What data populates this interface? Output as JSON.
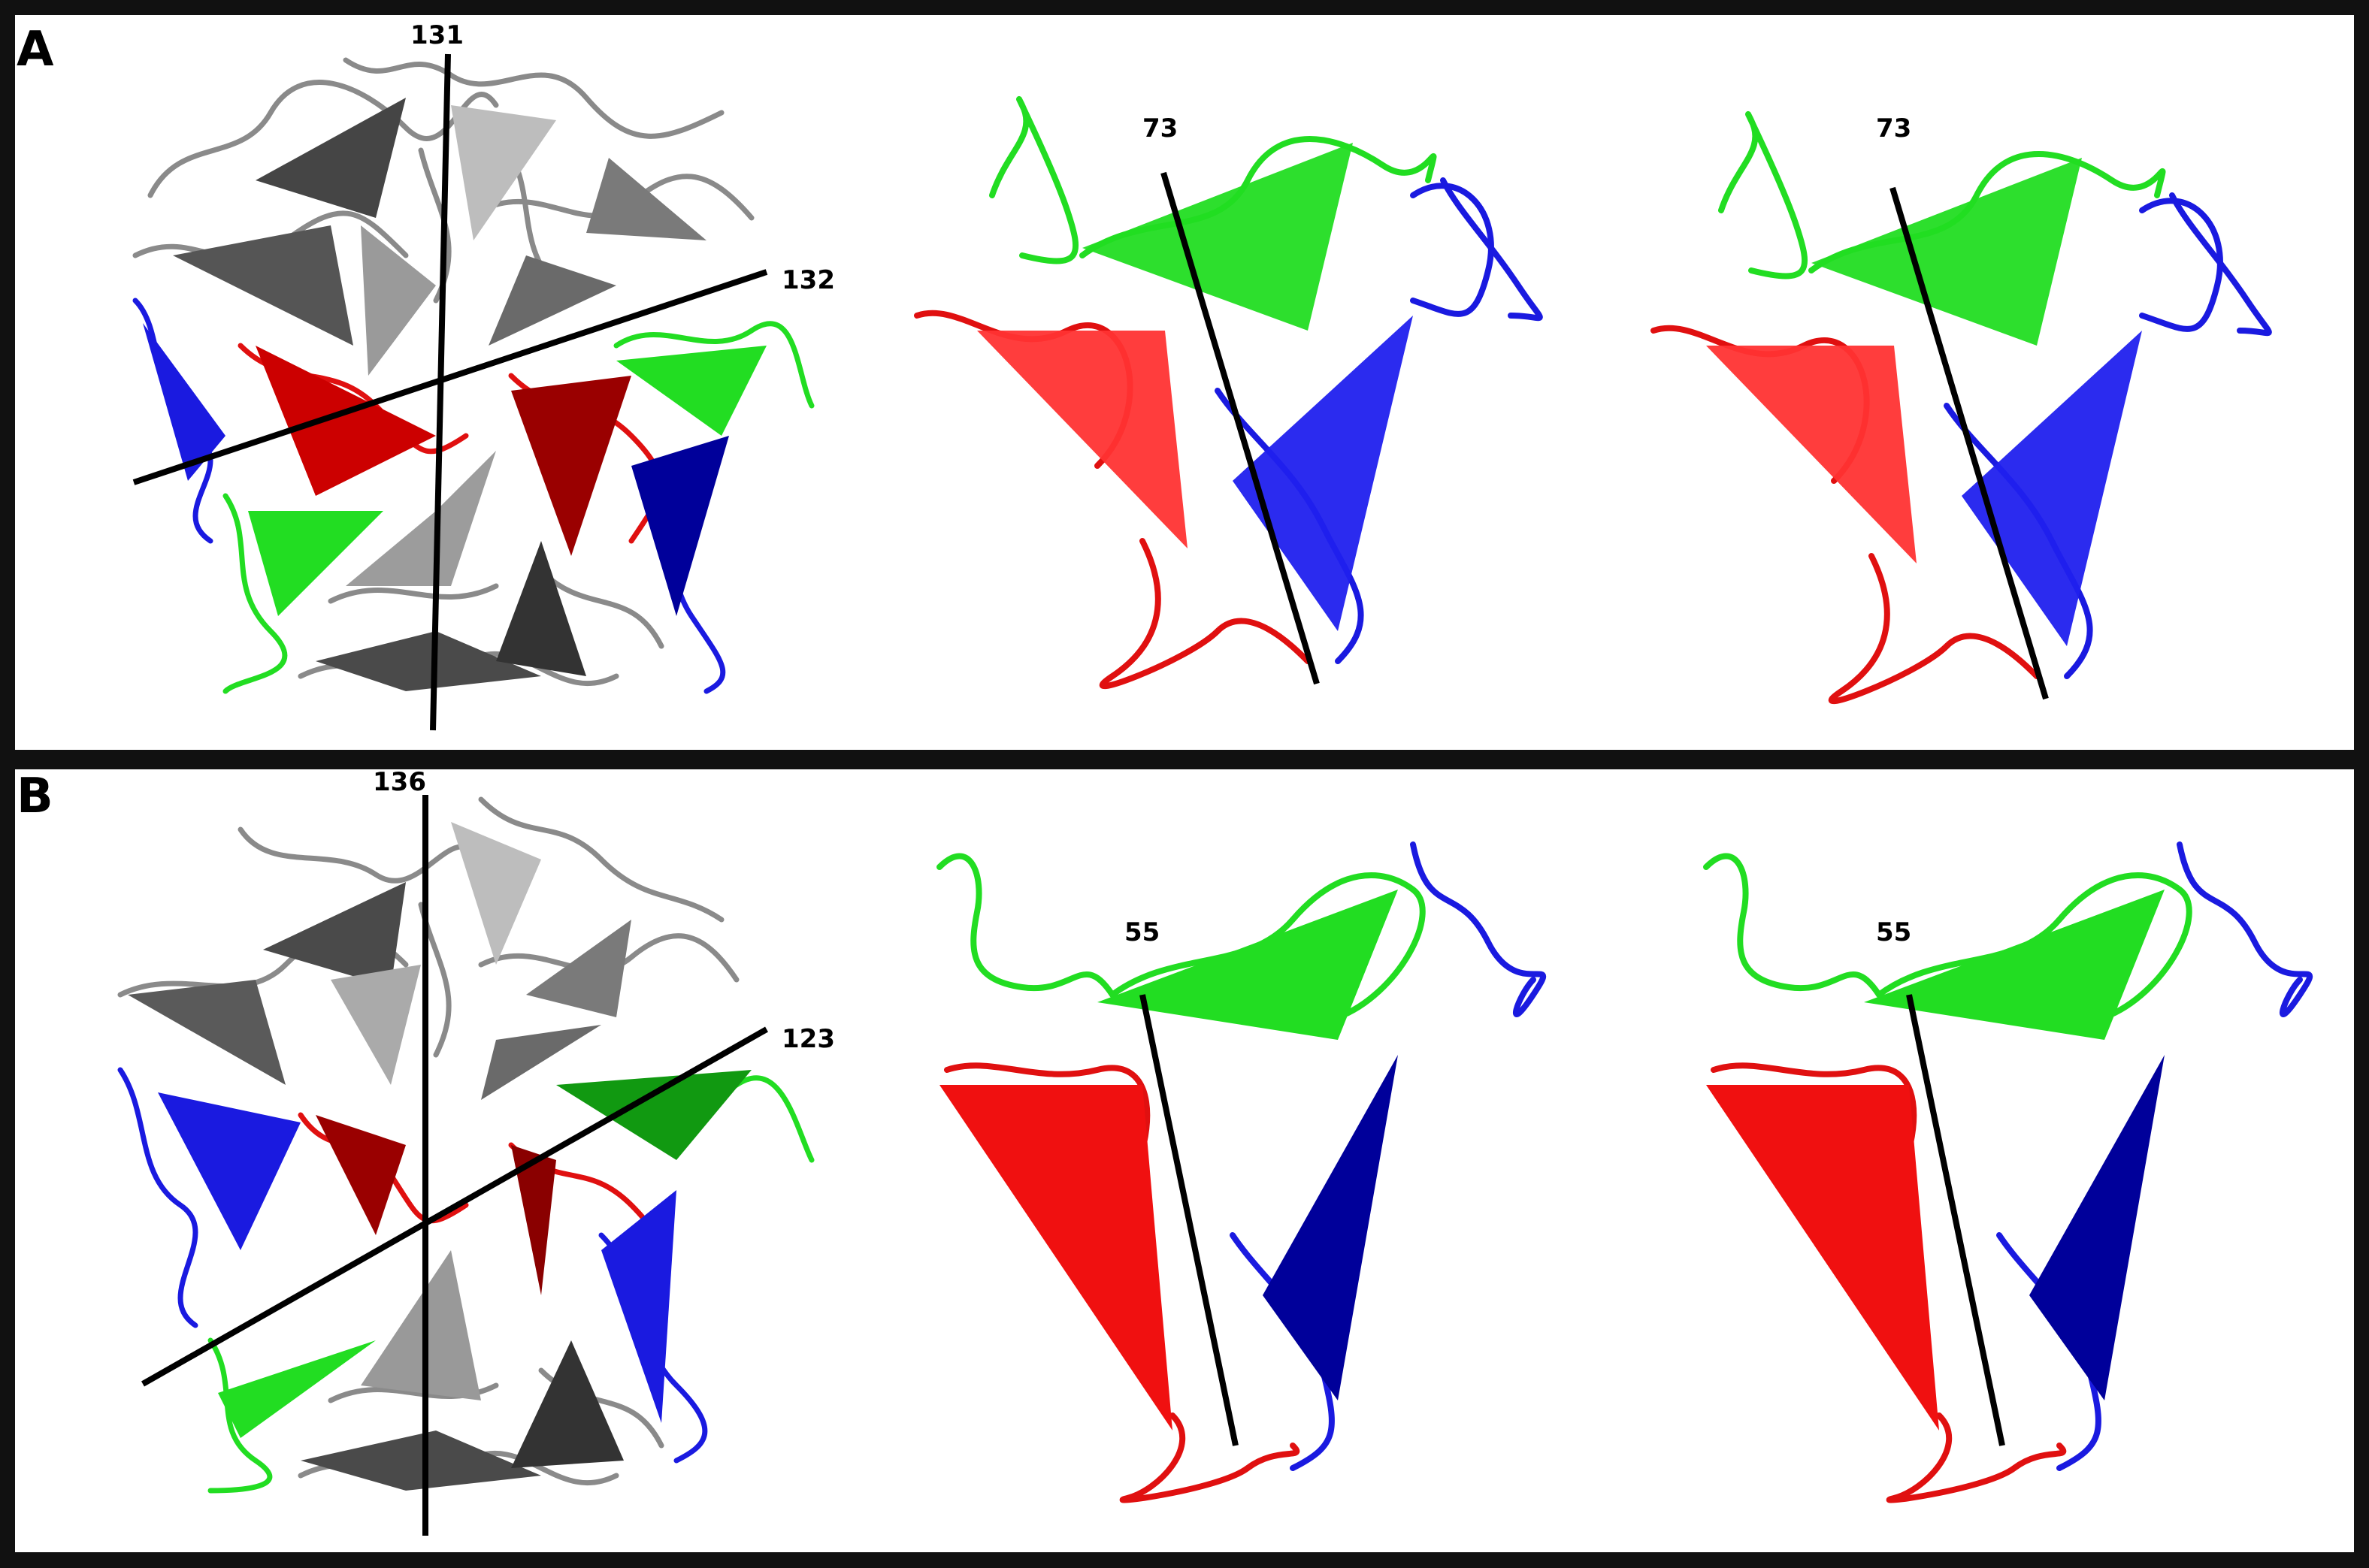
{
  "figure": {
    "panels": [
      {
        "letter": "A",
        "assembly_axes": [
          "131",
          "132"
        ],
        "stereo_axis_left": "73",
        "stereo_axis_right": "73"
      },
      {
        "letter": "B",
        "assembly_axes": [
          "136",
          "123"
        ],
        "stereo_axis_left": "55",
        "stereo_axis_right": "55"
      }
    ],
    "colors": {
      "red": "#e01010",
      "dark_red": "#9a0000",
      "green": "#22dd22",
      "dark_green": "#119911",
      "blue": "#1a1ae0",
      "dark_blue": "#00009a",
      "gray": "#777777",
      "dark_gray": "#3d3d3d",
      "light_gray": "#b4b4b4"
    }
  }
}
